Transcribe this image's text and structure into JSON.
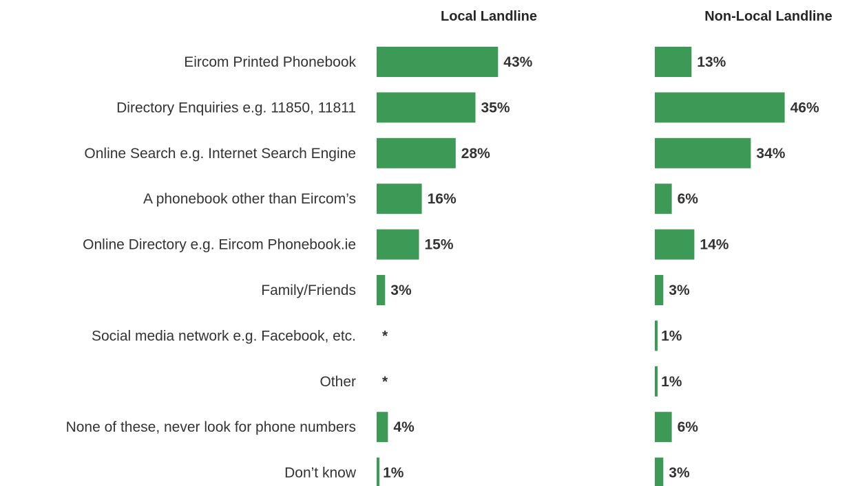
{
  "chart_data": {
    "type": "bar",
    "orientation": "horizontal",
    "categories": [
      "Eircom Printed Phonebook",
      "Directory Enquiries e.g. 11850, 11811",
      "Online Search e.g. Internet Search Engine",
      "A phonebook other than Eircom’s",
      "Online Directory e.g. Eircom Phonebook.ie",
      "Family/Friends",
      "Social media network e.g. Facebook, etc.",
      "Other",
      "None of these, never look for phone numbers",
      "Don’t know"
    ],
    "series": [
      {
        "name": "Local Landline",
        "values": [
          43,
          35,
          28,
          16,
          15,
          3,
          0,
          0,
          4,
          1
        ],
        "labels": [
          "43%",
          "35%",
          "28%",
          "16%",
          "15%",
          "3%",
          "*",
          "*",
          "4%",
          "1%"
        ]
      },
      {
        "name": "Non-Local Landline",
        "values": [
          13,
          46,
          34,
          6,
          14,
          3,
          1,
          1,
          6,
          3
        ],
        "labels": [
          "13%",
          "46%",
          "34%",
          "6%",
          "14%",
          "3%",
          "1%",
          "1%",
          "6%",
          "3%"
        ]
      }
    ],
    "bar_color": "#3d9a56",
    "grid": false,
    "legend": "none"
  }
}
